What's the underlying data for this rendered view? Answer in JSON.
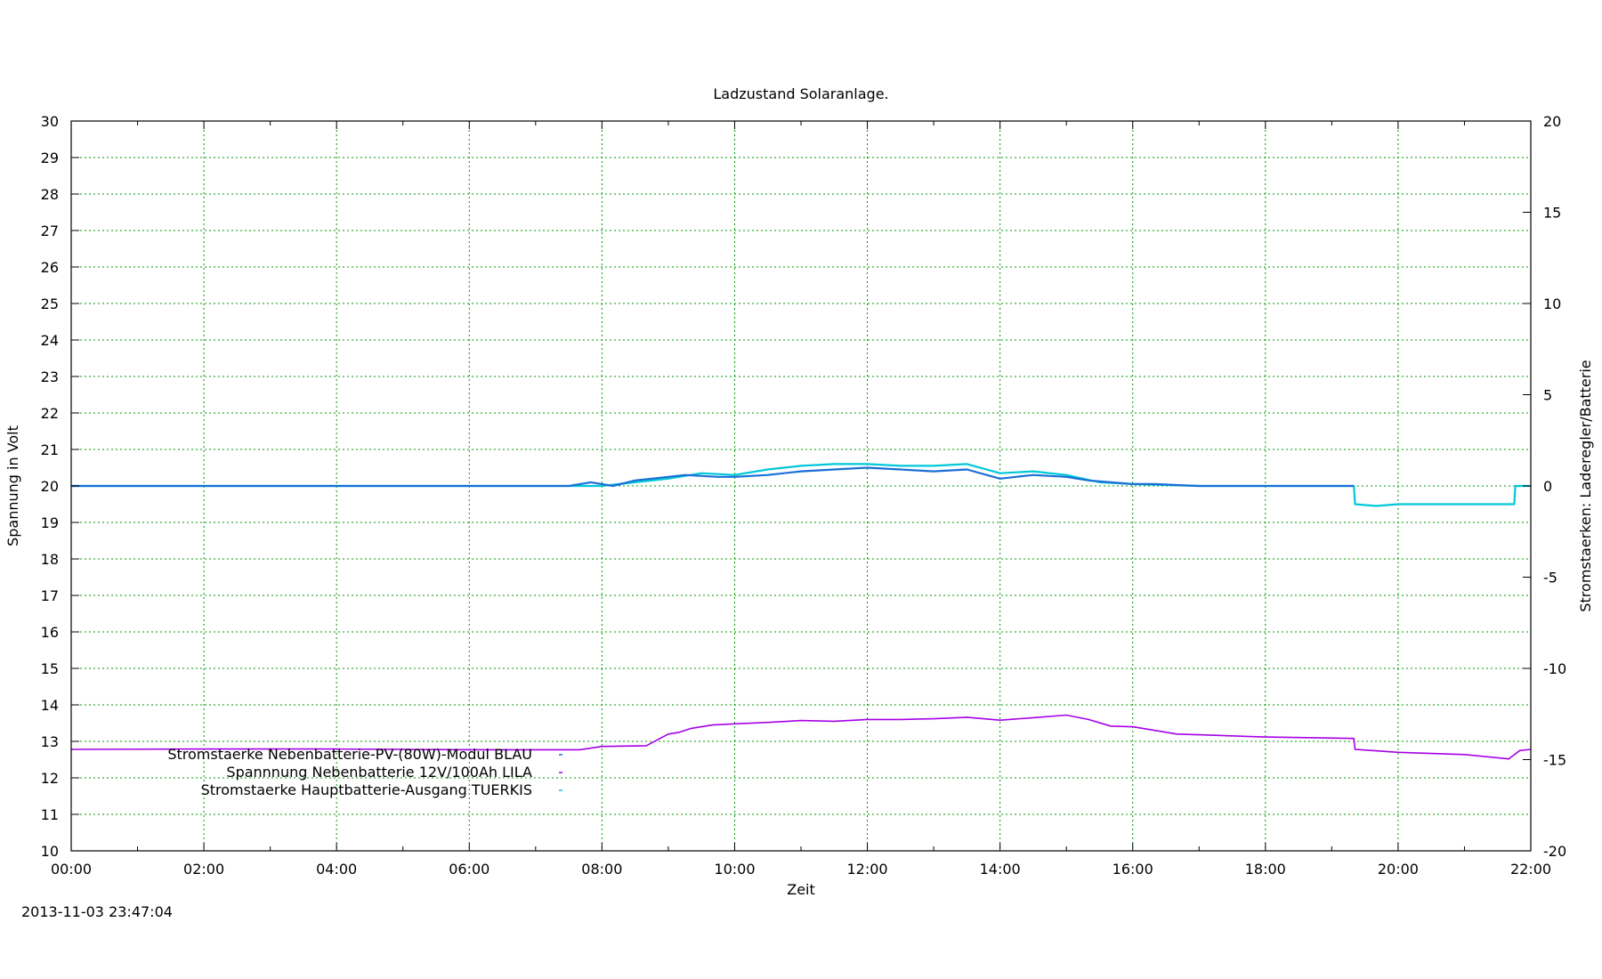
{
  "chart_data": {
    "type": "line",
    "title": "Ladzustand Solaranlage.",
    "xlabel": "Zeit",
    "ylabel": "Spannung in Volt",
    "y2label": "Stromstaerken: Laderegler/Batterie",
    "timestamp": "2013-11-03 23:47:04",
    "x_range": [
      "00:00",
      "22:00"
    ],
    "x_ticks": [
      "00:00",
      "02:00",
      "04:00",
      "06:00",
      "08:00",
      "10:00",
      "12:00",
      "14:00",
      "16:00",
      "18:00",
      "20:00",
      "22:00"
    ],
    "ylim": [
      10,
      30
    ],
    "y_ticks": [
      10,
      11,
      12,
      13,
      14,
      15,
      16,
      17,
      18,
      19,
      20,
      21,
      22,
      23,
      24,
      25,
      26,
      27,
      28,
      29,
      30
    ],
    "y2lim": [
      -20,
      20
    ],
    "y2_ticks": [
      -20,
      -15,
      -10,
      -5,
      0,
      5,
      10,
      15,
      20
    ],
    "grid": true,
    "legend_position": "bottom-left",
    "series": [
      {
        "name": "Stromstaerke Nebenbatterie-PV-(80W)-Modul BLAU",
        "axis": "y2",
        "color": "#1a6fd6",
        "x": [
          "00:00",
          "07:30",
          "07:50",
          "08:10",
          "08:30",
          "09:00",
          "09:15",
          "09:45",
          "10:00",
          "10:30",
          "11:00",
          "11:30",
          "12:00",
          "12:30",
          "13:00",
          "13:30",
          "14:00",
          "14:30",
          "15:00",
          "15:20",
          "15:40",
          "16:00",
          "16:20",
          "16:40",
          "17:00",
          "19:20"
        ],
        "y": [
          0.0,
          0.0,
          0.2,
          0.0,
          0.3,
          0.5,
          0.6,
          0.5,
          0.5,
          0.6,
          0.8,
          0.9,
          1.0,
          0.9,
          0.8,
          0.9,
          0.4,
          0.6,
          0.5,
          0.3,
          0.2,
          0.1,
          0.1,
          0.05,
          0.0,
          0.0
        ]
      },
      {
        "name": "Spannnung Nebenbatterie 12V/100Ah LILA",
        "axis": "y",
        "color": "#a600e6",
        "x": [
          "00:00",
          "02:00",
          "04:00",
          "06:00",
          "07:40",
          "08:00",
          "08:40",
          "09:00",
          "09:10",
          "09:20",
          "09:40",
          "10:00",
          "10:30",
          "11:00",
          "11:30",
          "12:00",
          "12:30",
          "13:00",
          "13:30",
          "14:00",
          "14:30",
          "15:00",
          "15:20",
          "15:40",
          "16:00",
          "16:40",
          "17:00",
          "18:00",
          "19:20",
          "19:21",
          "20:00",
          "21:00",
          "21:40",
          "21:50",
          "22:00"
        ],
        "y": [
          12.78,
          12.79,
          12.79,
          12.77,
          12.77,
          12.86,
          12.88,
          13.2,
          13.25,
          13.35,
          13.45,
          13.48,
          13.52,
          13.57,
          13.55,
          13.6,
          13.6,
          13.62,
          13.66,
          13.58,
          13.65,
          13.72,
          13.6,
          13.42,
          13.4,
          13.2,
          13.18,
          13.12,
          13.08,
          12.78,
          12.7,
          12.64,
          12.52,
          12.75,
          12.78
        ]
      },
      {
        "name": "Stromstaerke Hauptbatterie-Ausgang TUERKIS",
        "axis": "y2",
        "color": "#00c8d8",
        "x": [
          "00:00",
          "08:00",
          "08:30",
          "09:00",
          "09:30",
          "10:00",
          "10:30",
          "11:00",
          "11:30",
          "12:00",
          "12:30",
          "13:00",
          "13:30",
          "14:00",
          "14:30",
          "15:00",
          "15:30",
          "16:00",
          "17:00",
          "19:20",
          "19:21",
          "19:40",
          "20:00",
          "21:00",
          "21:45",
          "21:46",
          "22:00"
        ],
        "y": [
          0.0,
          0.0,
          0.2,
          0.4,
          0.7,
          0.6,
          0.9,
          1.1,
          1.2,
          1.2,
          1.1,
          1.1,
          1.2,
          0.7,
          0.8,
          0.6,
          0.2,
          0.1,
          0.0,
          0.0,
          -1.0,
          -1.1,
          -1.0,
          -1.0,
          -1.0,
          0.0,
          0.0
        ]
      }
    ]
  }
}
